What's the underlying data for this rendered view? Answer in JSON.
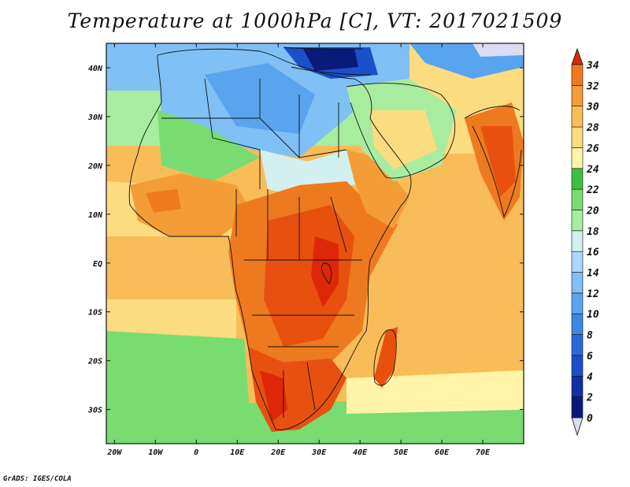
{
  "title": "Temperature at 1000hPa [C], VT: 2017021509",
  "credit": "GrADS: IGES/COLA",
  "map": {
    "lat_ticks": [
      "40N",
      "30N",
      "20N",
      "10N",
      "EQ",
      "10S",
      "20S",
      "30S"
    ],
    "lon_ticks": [
      "20W",
      "10W",
      "0",
      "10E",
      "20E",
      "30E",
      "40E",
      "50E",
      "60E",
      "70E"
    ],
    "lon_range": [
      -22,
      80
    ],
    "lat_range": [
      -37,
      45
    ]
  },
  "colorbar": {
    "labels": [
      "0",
      "2",
      "4",
      "6",
      "8",
      "10",
      "12",
      "14",
      "16",
      "18",
      "20",
      "22",
      "24",
      "26",
      "28",
      "30",
      "32",
      "34"
    ],
    "colors": [
      "#dcdcf5",
      "#0a1a78",
      "#1030a8",
      "#1c50c8",
      "#2a6ad8",
      "#3c88e4",
      "#58a4ee",
      "#80c0f4",
      "#aad8f8",
      "#d2f0f0",
      "#a8eca0",
      "#78dc70",
      "#3cc040",
      "#fff4a8",
      "#fcdc80",
      "#f8bc58",
      "#f49c38",
      "#ee7a20",
      "#e85010",
      "#dc2808"
    ]
  }
}
